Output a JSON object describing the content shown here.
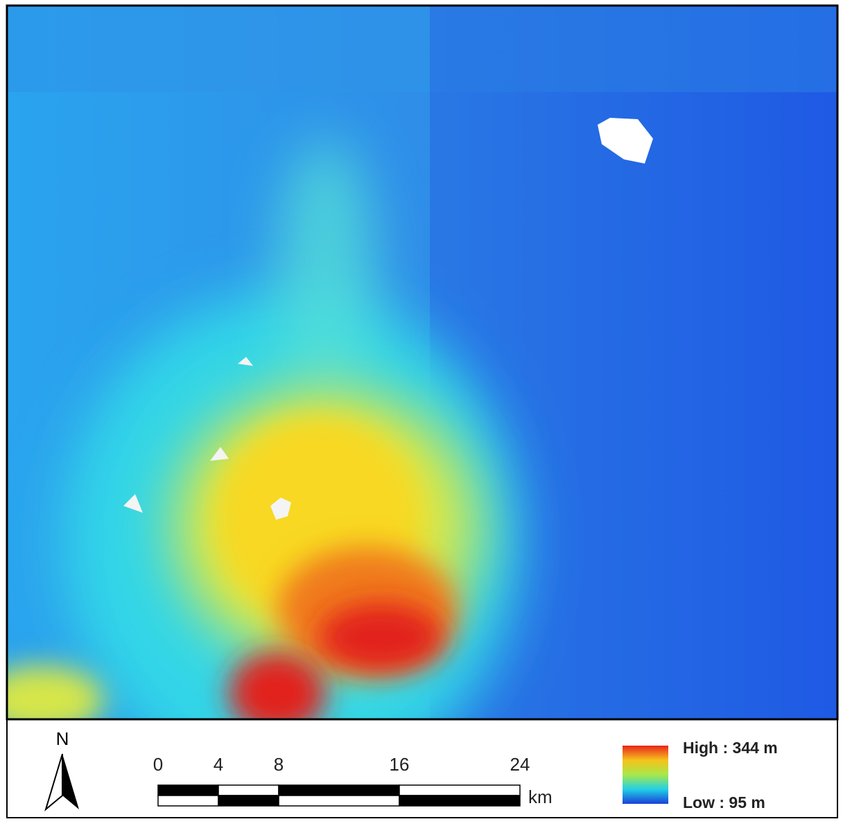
{
  "north_label": "N",
  "scale_bar": {
    "ticks": [
      0,
      4,
      8,
      16,
      24
    ],
    "unit": "km"
  },
  "legend": {
    "high_label": "High : 344 m",
    "low_label": "Low : 95 m"
  }
}
